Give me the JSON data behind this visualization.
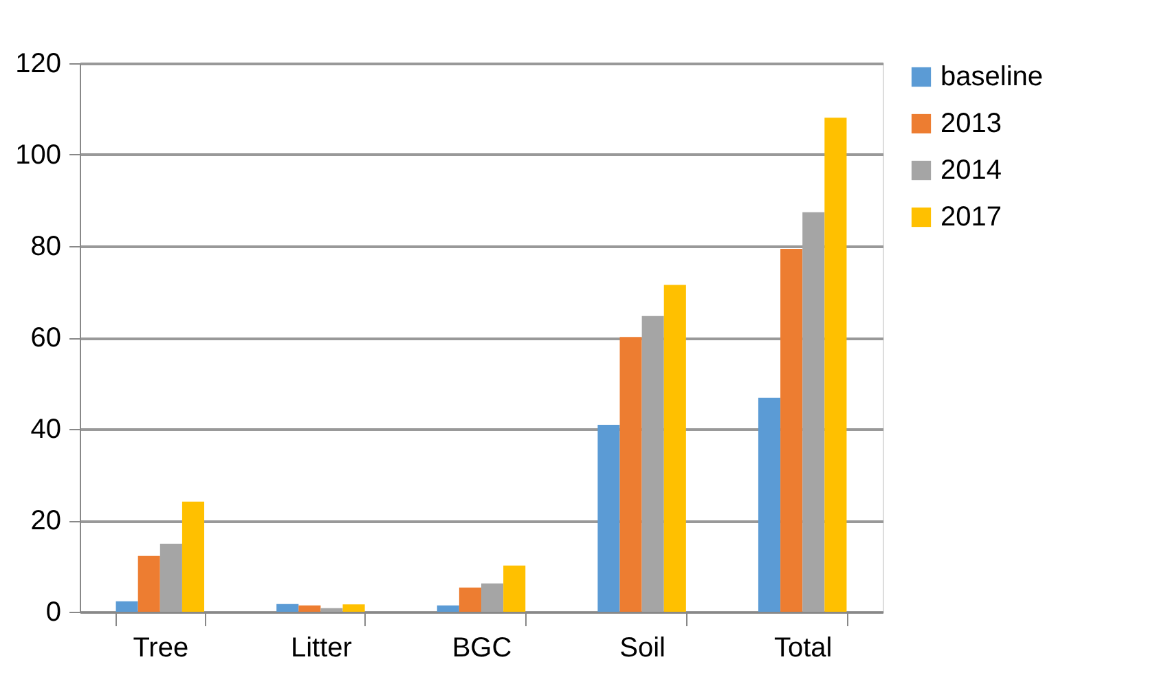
{
  "chart_data": {
    "type": "bar",
    "categories": [
      "Tree",
      "Litter",
      "BGC",
      "Soil",
      "Total"
    ],
    "series": [
      {
        "name": "baseline",
        "color": "#5b9bd5",
        "values": [
          2.3,
          1.7,
          1.4,
          40.9,
          46.8
        ]
      },
      {
        "name": "2013",
        "color": "#ed7d31",
        "values": [
          12.2,
          1.4,
          5.3,
          60.1,
          79.4
        ]
      },
      {
        "name": "2014",
        "color": "#a5a5a5",
        "values": [
          14.9,
          0.8,
          6.2,
          64.7,
          87.4
        ]
      },
      {
        "name": "2017",
        "color": "#ffc000",
        "values": [
          24.1,
          1.6,
          10.1,
          71.5,
          108.1
        ]
      }
    ],
    "ylim": [
      0,
      120
    ],
    "yticks": [
      0,
      20,
      40,
      60,
      80,
      100,
      120
    ],
    "grid": "y",
    "legend": "right"
  }
}
